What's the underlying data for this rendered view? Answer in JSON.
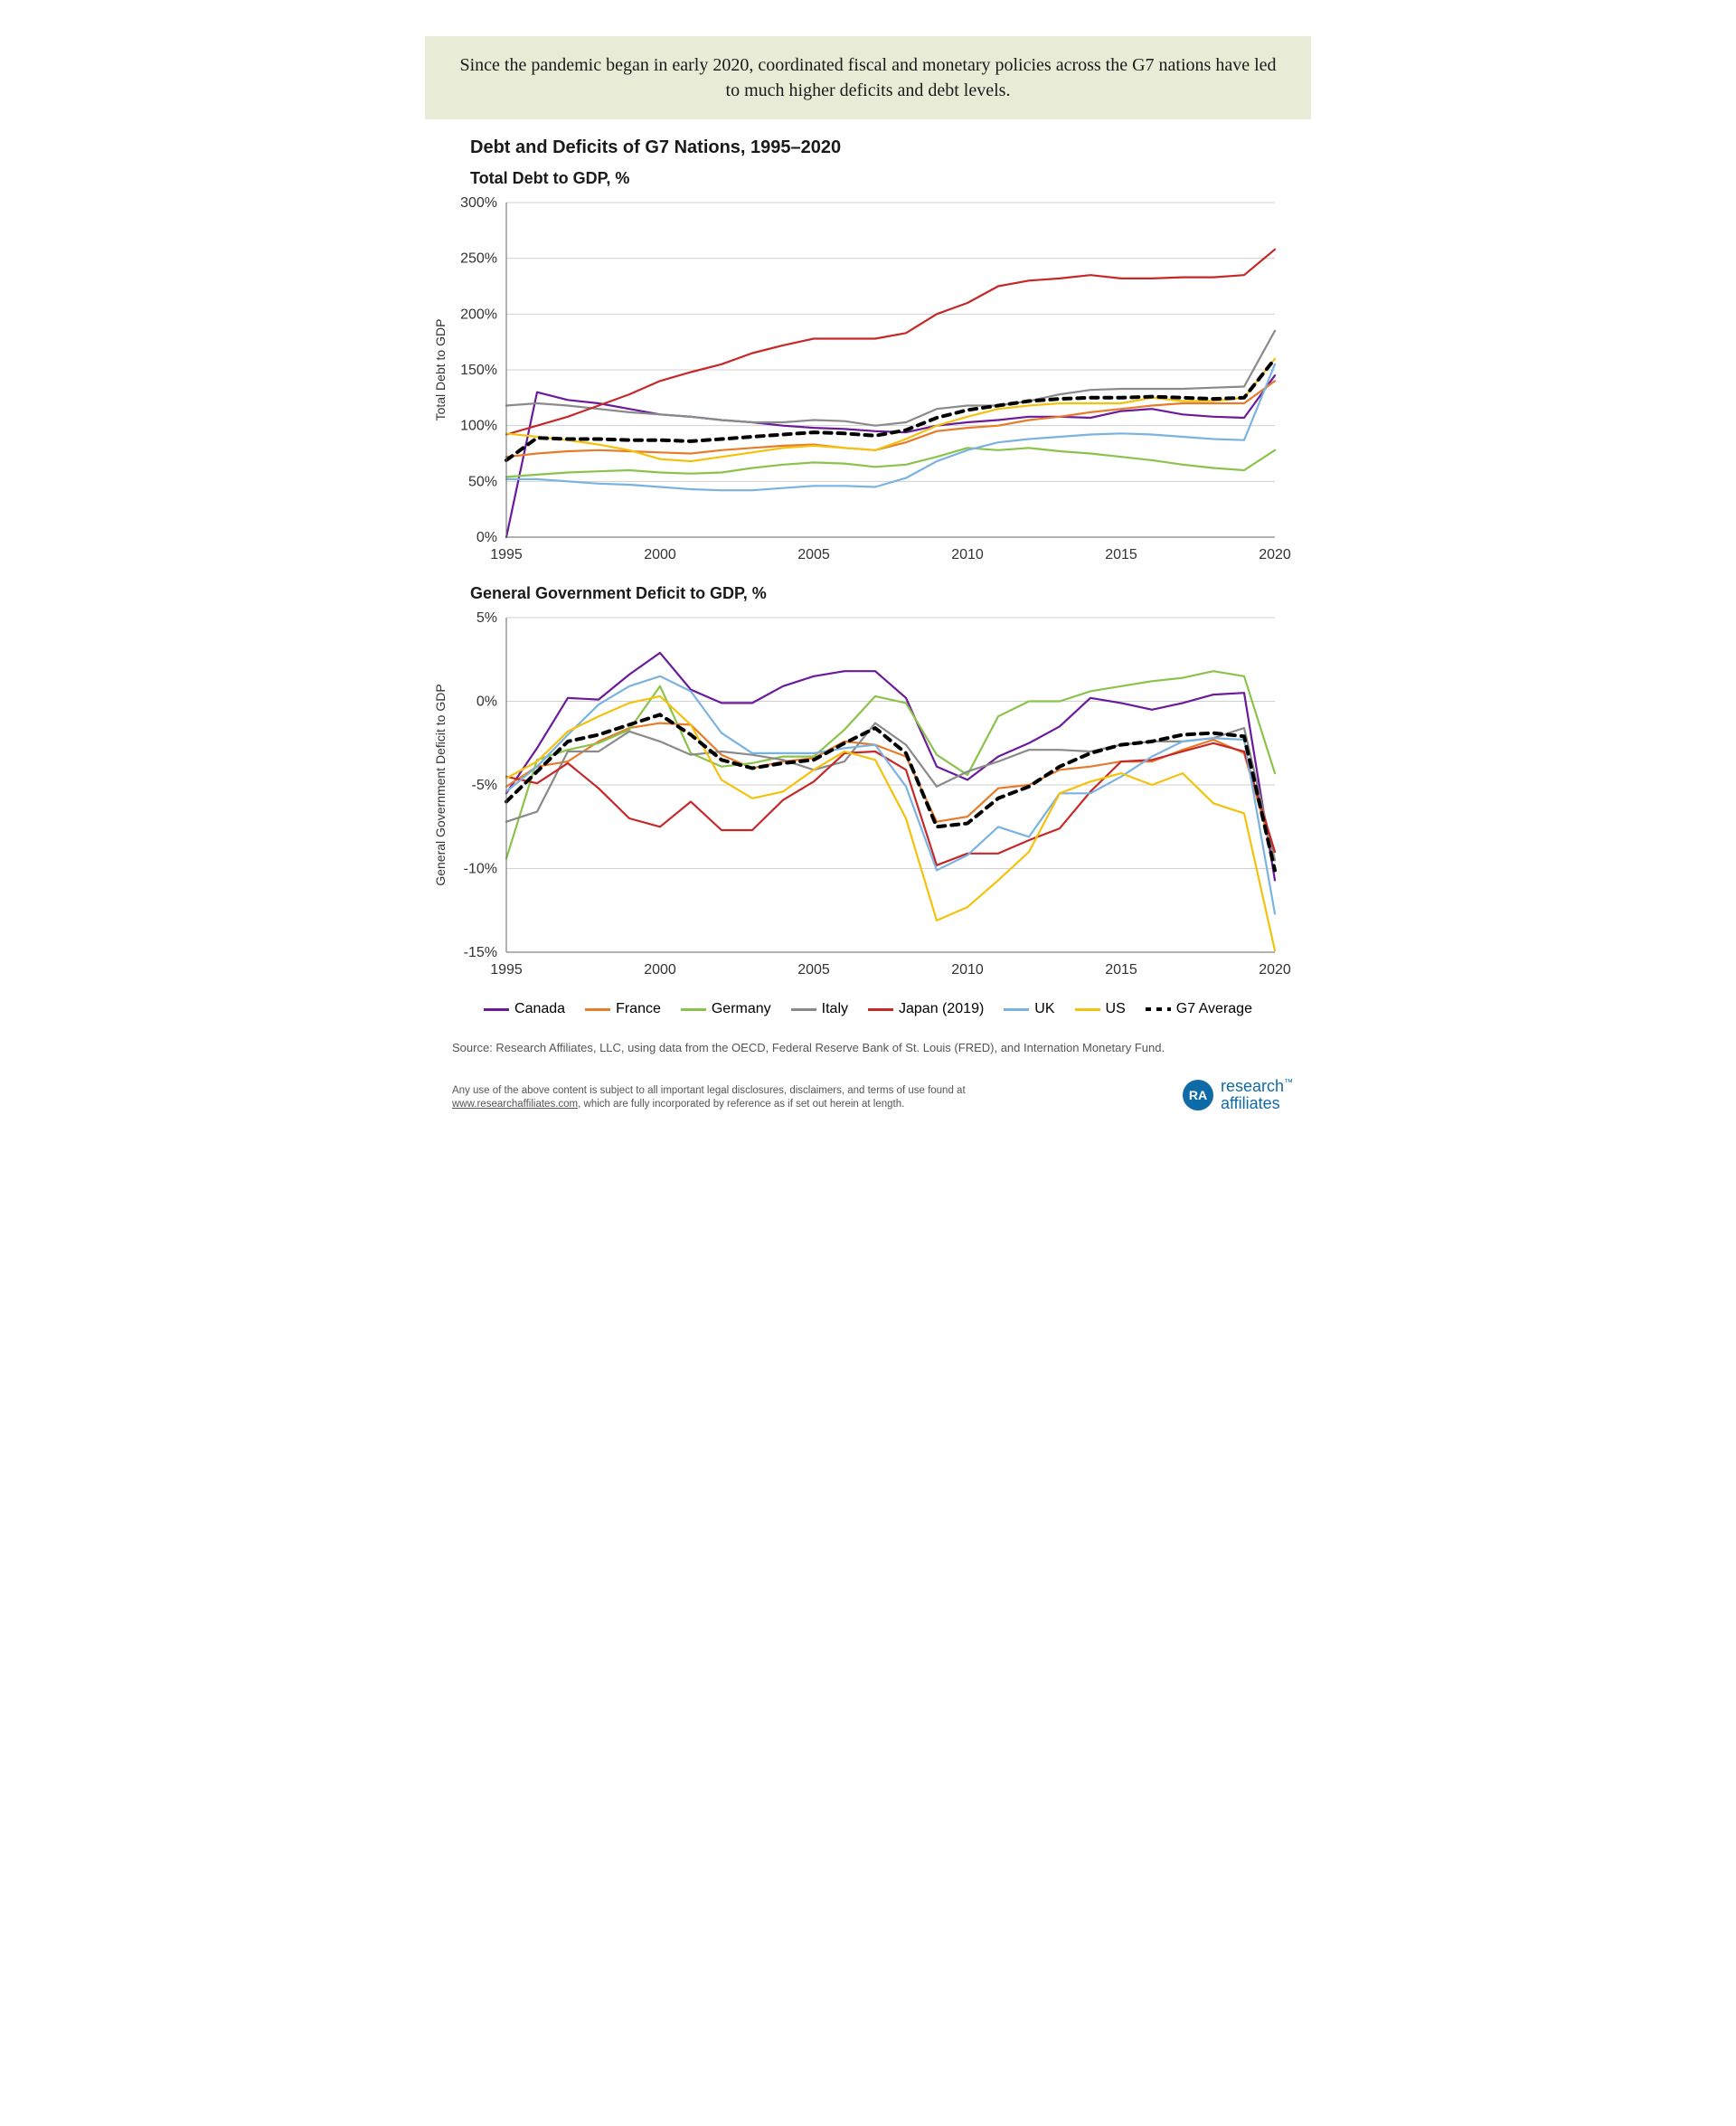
{
  "header_text": "Since the pandemic began in early 2020, coordinated fiscal and monetary policies across the G7 nations have led to much higher deficits and debt levels.",
  "main_title": "Debt and Deficits of G7 Nations, 1995–2020",
  "colors": {
    "canada": "#6a1a9a",
    "france": "#e87b2a",
    "germany": "#8bc34a",
    "italy": "#8a8a8a",
    "japan": "#c62828",
    "uk": "#7bb3e0",
    "us": "#f4c20d",
    "g7avg": "#000000",
    "grid": "#d0d0d0",
    "axis": "#666666",
    "bg": "#ffffff"
  },
  "legend": [
    {
      "key": "canada",
      "label": "Canada"
    },
    {
      "key": "france",
      "label": "France"
    },
    {
      "key": "germany",
      "label": "Germany"
    },
    {
      "key": "italy",
      "label": "Italy"
    },
    {
      "key": "japan",
      "label": "Japan (2019)"
    },
    {
      "key": "uk",
      "label": "UK"
    },
    {
      "key": "us",
      "label": "US"
    },
    {
      "key": "g7avg",
      "label": "G7 Average",
      "dashed": true
    }
  ],
  "years": [
    1995,
    1996,
    1997,
    1998,
    1999,
    2000,
    2001,
    2002,
    2003,
    2004,
    2005,
    2006,
    2007,
    2008,
    2009,
    2010,
    2011,
    2012,
    2013,
    2014,
    2015,
    2016,
    2017,
    2018,
    2019,
    2020
  ],
  "debt_chart": {
    "title": "Total Debt to GDP, %",
    "ylabel": "Total Debt to GDP",
    "ylim": [
      0,
      300
    ],
    "ytick_step": 50,
    "xticks": [
      1995,
      2000,
      2005,
      2010,
      2015,
      2020
    ],
    "series": {
      "canada": [
        0,
        130,
        123,
        120,
        115,
        110,
        108,
        105,
        103,
        100,
        98,
        97,
        95,
        94,
        100,
        103,
        105,
        108,
        108,
        107,
        113,
        115,
        110,
        108,
        107,
        145
      ],
      "france": [
        72,
        75,
        77,
        78,
        77,
        76,
        75,
        78,
        80,
        82,
        83,
        80,
        78,
        85,
        95,
        98,
        100,
        105,
        108,
        112,
        115,
        118,
        120,
        120,
        120,
        140
      ],
      "germany": [
        54,
        56,
        58,
        59,
        60,
        58,
        57,
        58,
        62,
        65,
        67,
        66,
        63,
        65,
        72,
        80,
        78,
        80,
        77,
        75,
        72,
        69,
        65,
        62,
        60,
        78
      ],
      "italy": [
        118,
        120,
        118,
        115,
        112,
        110,
        108,
        105,
        103,
        103,
        105,
        104,
        100,
        103,
        115,
        118,
        118,
        122,
        128,
        132,
        133,
        133,
        133,
        134,
        135,
        185
      ],
      "japan": [
        92,
        100,
        108,
        118,
        128,
        140,
        148,
        155,
        165,
        172,
        178,
        178,
        178,
        183,
        200,
        210,
        225,
        230,
        232,
        235,
        232,
        232,
        233,
        233,
        235,
        258
      ],
      "uk": [
        52,
        52,
        50,
        48,
        47,
        45,
        43,
        42,
        42,
        44,
        46,
        46,
        45,
        53,
        68,
        78,
        85,
        88,
        90,
        92,
        93,
        92,
        90,
        88,
        87,
        155
      ],
      "us": [
        93,
        90,
        87,
        83,
        78,
        70,
        68,
        72,
        76,
        80,
        82,
        80,
        78,
        88,
        100,
        108,
        115,
        118,
        120,
        120,
        120,
        125,
        122,
        122,
        125,
        160
      ],
      "g7avg": [
        69,
        89,
        88,
        88,
        87,
        87,
        86,
        88,
        90,
        92,
        94,
        93,
        91,
        96,
        107,
        114,
        118,
        122,
        124,
        125,
        125,
        126,
        125,
        124,
        125,
        160
      ]
    },
    "line_width": 2.2,
    "avg_line_width": 4,
    "avg_dash": "8 7"
  },
  "deficit_chart": {
    "title": "General Government Deficit to GDP, %",
    "ylabel": "General Government Deficit to GDP",
    "ylim": [
      -15,
      5
    ],
    "ytick_step": 5,
    "xticks": [
      1995,
      2000,
      2005,
      2010,
      2015,
      2020
    ],
    "series": {
      "canada": [
        -5.5,
        -2.8,
        0.2,
        0.1,
        1.6,
        2.9,
        0.7,
        -0.1,
        -0.1,
        0.9,
        1.5,
        1.8,
        1.8,
        0.2,
        -3.9,
        -4.7,
        -3.3,
        -2.5,
        -1.5,
        0.2,
        -0.1,
        -0.5,
        -0.1,
        0.4,
        0.5,
        -10.7
      ],
      "france": [
        -5.1,
        -3.9,
        -3.6,
        -2.4,
        -1.6,
        -1.3,
        -1.4,
        -3.2,
        -4.0,
        -3.6,
        -3.4,
        -2.4,
        -2.6,
        -3.3,
        -7.2,
        -6.9,
        -5.2,
        -5.0,
        -4.1,
        -3.9,
        -3.6,
        -3.6,
        -2.9,
        -2.3,
        -3.1,
        -9.5
      ],
      "germany": [
        -9.4,
        -3.5,
        -2.9,
        -2.5,
        -1.7,
        0.9,
        -3.1,
        -3.9,
        -3.7,
        -3.3,
        -3.3,
        -1.7,
        0.3,
        -0.1,
        -3.2,
        -4.4,
        -0.9,
        0.0,
        0.0,
        0.6,
        0.9,
        1.2,
        1.4,
        1.8,
        1.5,
        -4.3
      ],
      "italy": [
        -7.2,
        -6.6,
        -3.0,
        -3.0,
        -1.8,
        -2.4,
        -3.2,
        -3.0,
        -3.2,
        -3.5,
        -4.1,
        -3.6,
        -1.3,
        -2.6,
        -5.1,
        -4.2,
        -3.6,
        -2.9,
        -2.9,
        -3.0,
        -2.6,
        -2.4,
        -2.4,
        -2.2,
        -1.6,
        -9.5
      ],
      "japan": [
        -4.5,
        -4.9,
        -3.7,
        -5.2,
        -7.0,
        -7.5,
        -6.0,
        -7.7,
        -7.7,
        -5.9,
        -4.8,
        -3.1,
        -3.0,
        -4.1,
        -9.8,
        -9.1,
        -9.1,
        -8.3,
        -7.6,
        -5.4,
        -3.6,
        -3.5,
        -3.0,
        -2.5,
        -3.0,
        -9.0
      ],
      "uk": [
        -5.4,
        -3.9,
        -2.0,
        -0.2,
        0.9,
        1.5,
        0.6,
        -1.9,
        -3.1,
        -3.1,
        -3.1,
        -2.8,
        -2.6,
        -5.1,
        -10.1,
        -9.2,
        -7.5,
        -8.1,
        -5.5,
        -5.5,
        -4.5,
        -3.3,
        -2.4,
        -2.2,
        -2.3,
        -12.7
      ],
      "us": [
        -4.6,
        -3.6,
        -1.8,
        -0.9,
        -0.1,
        0.3,
        -1.4,
        -4.7,
        -5.8,
        -5.4,
        -4.1,
        -3.0,
        -3.5,
        -7.0,
        -13.1,
        -12.3,
        -10.7,
        -9.0,
        -5.5,
        -4.8,
        -4.3,
        -5.0,
        -4.3,
        -6.1,
        -6.7,
        -14.9
      ],
      "g7avg": [
        -6.0,
        -4.2,
        -2.4,
        -2.0,
        -1.4,
        -0.8,
        -2.0,
        -3.5,
        -4.0,
        -3.7,
        -3.5,
        -2.5,
        -1.6,
        -3.1,
        -7.5,
        -7.3,
        -5.8,
        -5.1,
        -3.9,
        -3.1,
        -2.6,
        -2.4,
        -2.0,
        -1.9,
        -2.1,
        -10.1
      ]
    },
    "line_width": 2.2,
    "avg_line_width": 4,
    "avg_dash": "8 7"
  },
  "source_text": "Source: Research Affiliates, LLC, using data from the OECD, Federal Reserve Bank of St. Louis (FRED), and Internation Monetary Fund.",
  "disclaimer_text_1": "Any use of the above content is subject to all important legal disclosures, disclaimers, and terms of use found at ",
  "disclaimer_link": "www.researchaffiliates.com",
  "disclaimer_text_2": ", which are fully incorporated by reference as if set out herein at length.",
  "brand": {
    "mark": "RA",
    "line1": "research",
    "line2": "affiliates"
  }
}
